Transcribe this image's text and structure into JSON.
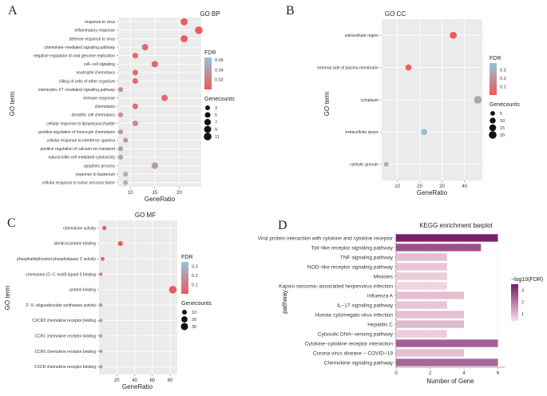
{
  "panels": [
    {
      "letter": "A",
      "title": "GO BP",
      "type": "scatter",
      "xlabel": "GeneRatio",
      "ylabel": "GO term",
      "xlim": [
        7.5,
        24.5
      ],
      "xticks": [
        10,
        15,
        20
      ],
      "categories": [
        "response to virus",
        "inflammatory response",
        "defense response to virus",
        "chemokine−mediated signaling pathway",
        "negative regulation of viral genome replication",
        "cell−cell signaling",
        "neutrophil chemotaxis",
        "killing of cells of other organism",
        "interleukin−27−mediated signaling pathway",
        "immune response",
        "chemotaxis",
        "dendritic cell chemotaxis",
        "cellular response to lipopolysaccharide",
        "positive regulation of monocyte chemotaxis",
        "cellular response to interferon−gamma",
        "positive regulation of calcium ion transport",
        "natural killer cell mediated cytotoxicity",
        "apoptotic process",
        "response to bacterium",
        "cellular response to tumor necrosis factor"
      ],
      "x": [
        21,
        24,
        21,
        13,
        11,
        15,
        11,
        11,
        8,
        17,
        11,
        8,
        11,
        8,
        9,
        8,
        8,
        15,
        9,
        9
      ],
      "size": [
        9,
        11,
        9,
        7,
        5,
        7,
        5,
        5,
        3,
        7,
        5,
        3,
        5,
        3,
        3,
        3,
        3,
        7,
        3,
        3
      ],
      "fdr": [
        0.002,
        0.001,
        0.002,
        0.01,
        0.01,
        0.008,
        0.012,
        0.012,
        0.03,
        0.008,
        0.015,
        0.03,
        0.03,
        0.04,
        0.035,
        0.04,
        0.045,
        0.04,
        0.05,
        0.055
      ],
      "fdr_range": [
        0.0,
        0.065
      ],
      "color_legend": {
        "title": "FDR",
        "ticks": [
          0.06,
          0.04,
          0.02
        ]
      },
      "size_legend": {
        "title": "Genecounts",
        "values": [
          3,
          5,
          7,
          9,
          11
        ]
      }
    },
    {
      "letter": "B",
      "title": "GO CC",
      "type": "scatter",
      "xlabel": "GeneRatio",
      "ylabel": "GO term",
      "xlim": [
        3,
        48
      ],
      "xticks": [
        10,
        20,
        30,
        40
      ],
      "categories": [
        "extracellular region",
        "external side of plasma membrane",
        "cytoplasm",
        "extracellular space",
        "cytolytic granule"
      ],
      "x": [
        35,
        15,
        46,
        22,
        5
      ],
      "size": [
        16,
        11,
        20,
        11,
        5
      ],
      "fdr": [
        0.01,
        0.02,
        0.25,
        0.35,
        0.3
      ],
      "fdr_range": [
        0.0,
        0.38
      ],
      "color_legend": {
        "title": "FDR",
        "ticks": [
          0.3,
          0.2,
          0.1
        ]
      },
      "size_legend": {
        "title": "Genecounts",
        "values": [
          5,
          10,
          15,
          20
        ]
      }
    },
    {
      "letter": "C",
      "title": "GO MF",
      "type": "scatter",
      "xlabel": "GeneRatio",
      "ylabel": "GO term",
      "xlim": [
        0,
        88
      ],
      "xticks": [
        20,
        40,
        60,
        80
      ],
      "categories": [
        "chemokine activity",
        "identical protein binding",
        "phosphatidylinositol phospholipase C activity",
        "chemokine (C−C motif) ligand 5 binding",
        "protein binding",
        "2′−5′−oligoadenylate synthetase activity",
        "CXCR3 chemokine receptor binding",
        "CCR1 chemokine receptor binding",
        "CCR5 chemokine receptor binding",
        "CXCR chemokine receptor binding"
      ],
      "x": [
        6,
        24,
        4,
        2,
        83,
        2,
        2,
        2,
        2,
        2
      ],
      "size": [
        7,
        11,
        5,
        3,
        35,
        3,
        3,
        3,
        3,
        3
      ],
      "fdr": [
        0.01,
        0.01,
        0.015,
        0.1,
        0.01,
        0.2,
        0.2,
        0.2,
        0.2,
        0.2
      ],
      "fdr_range": [
        0.0,
        0.35
      ],
      "color_legend": {
        "title": "FDR",
        "ticks": [
          0.3,
          0.2,
          0.1
        ]
      },
      "size_legend": {
        "title": "Genecounts",
        "values": [
          10,
          20,
          30
        ]
      }
    },
    {
      "letter": "D",
      "title": "KEGG enrichment barplot",
      "type": "bar",
      "xlabel": "Number of Gene",
      "ylabel": "pathway",
      "xlim": [
        0,
        6.4
      ],
      "xticks": [
        0,
        2,
        4,
        6
      ],
      "categories": [
        "Viral protein interaction with cytokine and cytokine receptor",
        "Toll−like receptor signaling pathway",
        "TNF signaling pathway",
        "NOD−like receptor signaling pathway",
        "Measles",
        "Kaposi sarcoma−associated herpesvirus infection",
        "Influenza A",
        "IL−17 signaling pathway",
        "Human cytomegalo  virus infection",
        "Hepatitis C",
        "Cytosolic DNA−sensing pathway",
        "Cytokine−cytokine receptor interaction",
        "Corona virus disease − COVID−19",
        "Chemokine signaling pathway"
      ],
      "values": [
        6,
        5,
        3,
        3,
        3,
        3,
        4,
        3,
        4,
        4,
        3,
        6,
        4,
        6
      ],
      "neglog10fdr": [
        3.4,
        2.6,
        0.9,
        0.8,
        0.7,
        0.6,
        0.9,
        0.8,
        0.9,
        1.0,
        0.7,
        2.4,
        0.9,
        2.3
      ],
      "color_range": [
        0.4,
        3.5
      ],
      "color_legend": {
        "title": "−log10(FDR)",
        "ticks": [
          3,
          2,
          1
        ]
      }
    }
  ]
}
